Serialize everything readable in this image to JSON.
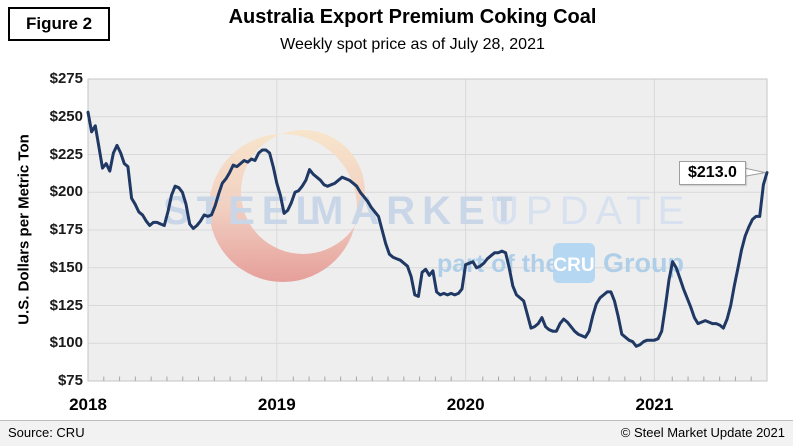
{
  "figure_label": "Figure 2",
  "header": {
    "title": "Australia Export Premium Coking Coal",
    "subtitle": "Weekly spot price as of July 28, 2021"
  },
  "y_axis": {
    "title": "U.S. Dollars per Metric Ton"
  },
  "watermark": {
    "steel": "STEEL",
    "market": "MARKET",
    "update": "UPDATE",
    "part_of_the": "part of the",
    "cru": "CRU",
    "group": "Group"
  },
  "callout": {
    "label": "$213.0"
  },
  "footer": {
    "source": "Source: CRU",
    "copyright": "© Steel Market Update 2021"
  },
  "colors": {
    "line": "#1F3864",
    "plot_bg": "#EEEEEE",
    "grid": "#D9D9D9",
    "border": "#C6C6C6",
    "tick": "#A6A6A6",
    "watermark_text": "#C9D6E8",
    "watermark_text_light": "#D8E1F0",
    "watermark_blue": "#AFCFE9",
    "cru_box": "#AED4F2",
    "cru_text": "#FFFFFF",
    "crescent_top": "#F8E4C9",
    "crescent_mid": "#F2CFC0",
    "crescent_bottom": "#E59B96",
    "callout_border": "#9E9E9E"
  },
  "chart_data": {
    "type": "line",
    "title": "Australia Export Premium Coking Coal",
    "subtitle": "Weekly spot price as of July 28, 2021",
    "ylabel": "U.S. Dollars per Metric Ton",
    "ylim": [
      75,
      275
    ],
    "y_tick_labels": [
      "$275",
      "$250",
      "$225",
      "$200",
      "$175",
      "$150",
      "$125",
      "$100",
      "$75"
    ],
    "x_tick_labels": [
      "2018",
      "2019",
      "2020",
      "2021"
    ],
    "x_range": "Jan 2018 - Jul 28, 2021",
    "frequency": "weekly",
    "grid": "on",
    "source": "CRU",
    "last_point_label": "$213.0",
    "series": [
      {
        "name": "Australia export premium coking coal weekly spot price (USD per metric ton)",
        "values": [
          253,
          240,
          244,
          230,
          216,
          219,
          214,
          226,
          231,
          226,
          219,
          217,
          196,
          192,
          187,
          185,
          181,
          178,
          180,
          180,
          179,
          178,
          187,
          198,
          204,
          203,
          200,
          192,
          179,
          176,
          178,
          181,
          185,
          184,
          185,
          191,
          199,
          206,
          209,
          213,
          218,
          217,
          219,
          221,
          220,
          222,
          221,
          226,
          228,
          228,
          226,
          217,
          206,
          198,
          186,
          188,
          193,
          200,
          201,
          204,
          208,
          215,
          212,
          210,
          208,
          205,
          204,
          205,
          206,
          208,
          210,
          209,
          208,
          206,
          204,
          200,
          197,
          194,
          190,
          187,
          184,
          175,
          166,
          159,
          157,
          156,
          155,
          153,
          151,
          144,
          132,
          131,
          147,
          149,
          145,
          148,
          134,
          132,
          133,
          132,
          133,
          132,
          133,
          136,
          152,
          153,
          154,
          150,
          151,
          153,
          156,
          158,
          160,
          160,
          161,
          160,
          150,
          138,
          132,
          130,
          128,
          119,
          110,
          111,
          113,
          117,
          111,
          109,
          108,
          108,
          113,
          116,
          114,
          111,
          108,
          106,
          105,
          104,
          108,
          118,
          126,
          130,
          132,
          134,
          134,
          128,
          118,
          106,
          104,
          102,
          101,
          98,
          99,
          101,
          102,
          102,
          102,
          103,
          108,
          124,
          142,
          154,
          150,
          143,
          136,
          130,
          124,
          117,
          113,
          114,
          115,
          114,
          113,
          113,
          112,
          110,
          116,
          125,
          138,
          150,
          162,
          171,
          177,
          182,
          184,
          184,
          205,
          213
        ]
      }
    ]
  }
}
